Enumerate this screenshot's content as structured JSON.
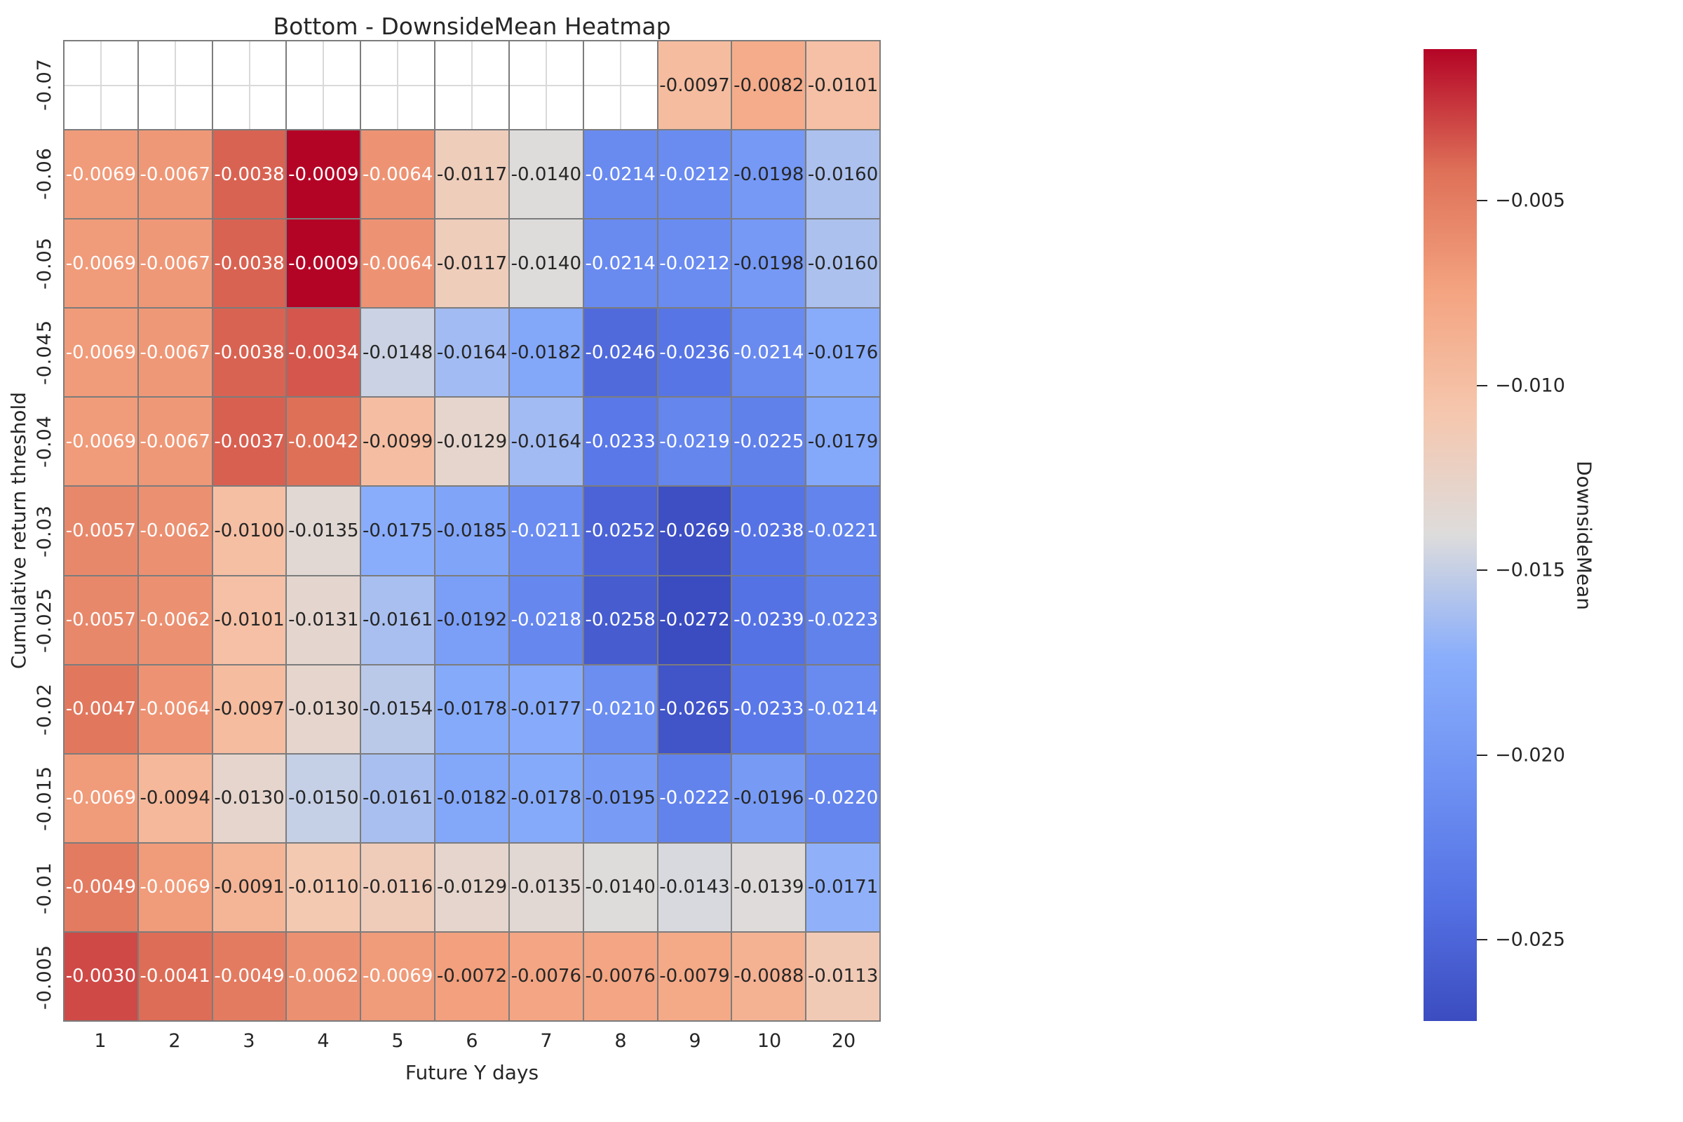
{
  "title": "Bottom - DownsideMean Heatmap",
  "xlabel": "Future Y days",
  "ylabel": "Cumulative return threshold",
  "colorbar": {
    "label": "DownsideMean",
    "ticks": [
      {
        "value": -0.005,
        "label": "−0.005"
      },
      {
        "value": -0.01,
        "label": "−0.010"
      },
      {
        "value": -0.015,
        "label": "−0.015"
      },
      {
        "value": -0.02,
        "label": "−0.020"
      },
      {
        "value": -0.025,
        "label": "−0.025"
      }
    ]
  },
  "colors": {
    "background": "#ffffff",
    "grid_line": "#7c7c7c",
    "empty_cell_gridline": "#d9d9d9",
    "annot_dark": "#262626",
    "annot_light": "#ffffff",
    "colormap_stops": [
      "#3B4CC0",
      "#5572E4",
      "#6F92F3",
      "#8AAEFB",
      "#DDDCDC",
      "#F5C7AE",
      "#F4A481",
      "#DE7058",
      "#B40426"
    ],
    "white_text_low_t": 0.26,
    "white_text_high_t": 0.765
  },
  "chart_data": {
    "type": "heatmap",
    "title": "Bottom - DownsideMean Heatmap",
    "xlabel": "Future Y days",
    "ylabel": "Cumulative return threshold",
    "colormap": "coolwarm",
    "vmin": -0.0272,
    "vmax": -0.0009,
    "legend_position": "right-colorbar",
    "x_categories": [
      "1",
      "2",
      "3",
      "4",
      "5",
      "6",
      "7",
      "8",
      "9",
      "10",
      "20"
    ],
    "y_categories": [
      "-0.07",
      "-0.06",
      "-0.05",
      "-0.045",
      "-0.04",
      "-0.03",
      "-0.025",
      "-0.02",
      "-0.015",
      "-0.01",
      "-0.005"
    ],
    "values": [
      [
        null,
        null,
        null,
        null,
        null,
        null,
        null,
        null,
        -0.0097,
        -0.0082,
        -0.0101
      ],
      [
        -0.0069,
        -0.0067,
        -0.0038,
        -0.0009,
        -0.0064,
        -0.0117,
        -0.014,
        -0.0214,
        -0.0212,
        -0.0198,
        -0.016
      ],
      [
        -0.0069,
        -0.0067,
        -0.0038,
        -0.0009,
        -0.0064,
        -0.0117,
        -0.014,
        -0.0214,
        -0.0212,
        -0.0198,
        -0.016
      ],
      [
        -0.0069,
        -0.0067,
        -0.0038,
        -0.0034,
        -0.0148,
        -0.0164,
        -0.0182,
        -0.0246,
        -0.0236,
        -0.0214,
        -0.0176
      ],
      [
        -0.0069,
        -0.0067,
        -0.0037,
        -0.0042,
        -0.0099,
        -0.0129,
        -0.0164,
        -0.0233,
        -0.0219,
        -0.0225,
        -0.0179
      ],
      [
        -0.0057,
        -0.0062,
        -0.01,
        -0.0135,
        -0.0175,
        -0.0185,
        -0.0211,
        -0.0252,
        -0.0269,
        -0.0238,
        -0.0221
      ],
      [
        -0.0057,
        -0.0062,
        -0.0101,
        -0.0131,
        -0.0161,
        -0.0192,
        -0.0218,
        -0.0258,
        -0.0272,
        -0.0239,
        -0.0223
      ],
      [
        -0.0047,
        -0.0064,
        -0.0097,
        -0.013,
        -0.0154,
        -0.0178,
        -0.0177,
        -0.021,
        -0.0265,
        -0.0233,
        -0.0214
      ],
      [
        -0.0069,
        -0.0094,
        -0.013,
        -0.015,
        -0.0161,
        -0.0182,
        -0.0178,
        -0.0195,
        -0.0222,
        -0.0196,
        -0.022
      ],
      [
        -0.0049,
        -0.0069,
        -0.0091,
        -0.011,
        -0.0116,
        -0.0129,
        -0.0135,
        -0.014,
        -0.0143,
        -0.0139,
        -0.0171
      ],
      [
        -0.003,
        -0.0041,
        -0.0049,
        -0.0062,
        -0.0069,
        -0.0072,
        -0.0076,
        -0.0076,
        -0.0079,
        -0.0088,
        -0.0113
      ]
    ],
    "annotation_decimals": 4
  }
}
